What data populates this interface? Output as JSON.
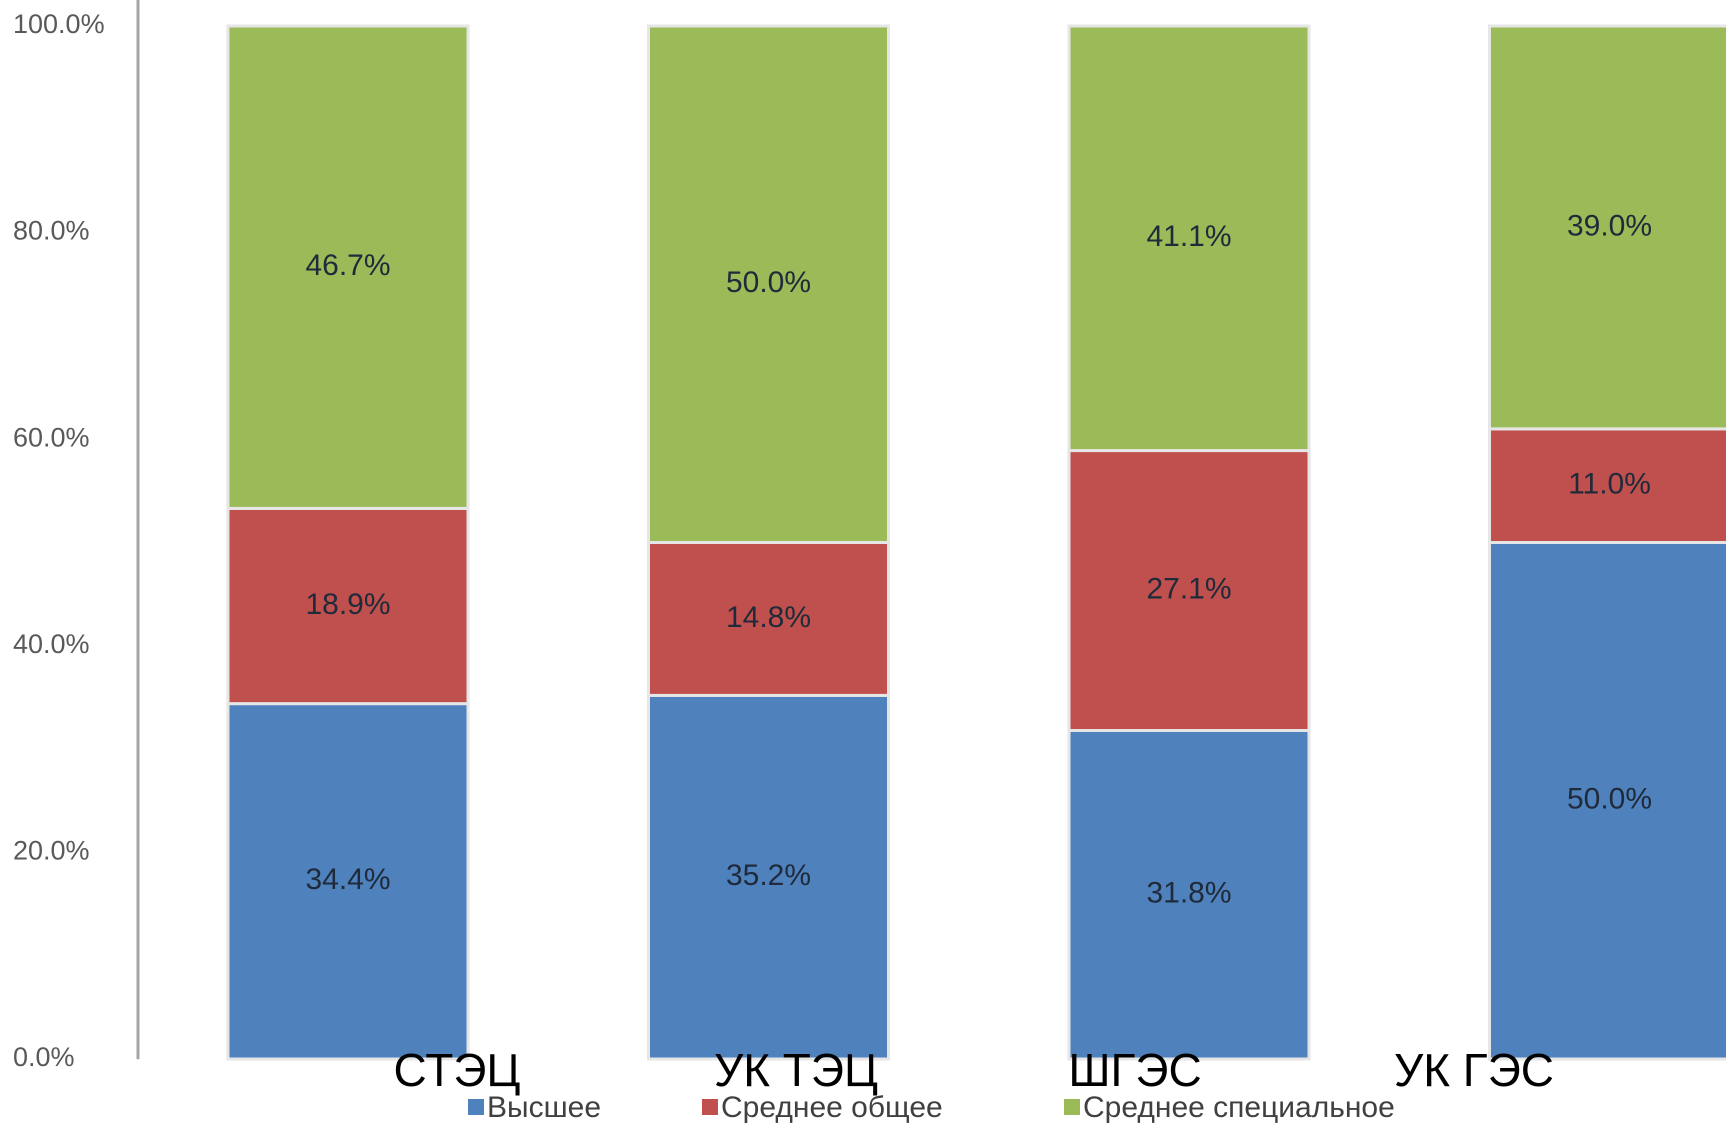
{
  "chart_data": {
    "type": "stacked-bar",
    "categories": [
      "СТЭЦ",
      "УК ТЭЦ",
      "ШГЭС",
      "УК ГЭС"
    ],
    "series": [
      {
        "name": "Высшее",
        "color": "#4f81bd",
        "values": [
          34.4,
          35.2,
          31.8,
          50.0
        ],
        "value_labels": [
          "34.4%",
          "35.2%",
          "31.8%",
          "50.0%"
        ]
      },
      {
        "name": "Среднее общее",
        "color": "#c0504d",
        "values": [
          18.9,
          14.8,
          27.1,
          11.0
        ],
        "value_labels": [
          "18.9%",
          "14.8%",
          "27.1%",
          "11.0%"
        ]
      },
      {
        "name": "Среднее специальное",
        "color": "#9bbb59",
        "values": [
          46.7,
          50.0,
          41.1,
          39.0
        ],
        "value_labels": [
          "46.7%",
          "50.0%",
          "41.1%",
          "39.0%"
        ]
      }
    ],
    "ylim": [
      0,
      100
    ],
    "yticks": [
      {
        "value": 0,
        "label": "0.0%"
      },
      {
        "value": 20,
        "label": "20.0%"
      },
      {
        "value": 40,
        "label": "40.0%"
      },
      {
        "value": 60,
        "label": "60.0%"
      },
      {
        "value": 80,
        "label": "80.0%"
      },
      {
        "value": 100,
        "label": "100.0%"
      }
    ],
    "legend": "bottom"
  }
}
